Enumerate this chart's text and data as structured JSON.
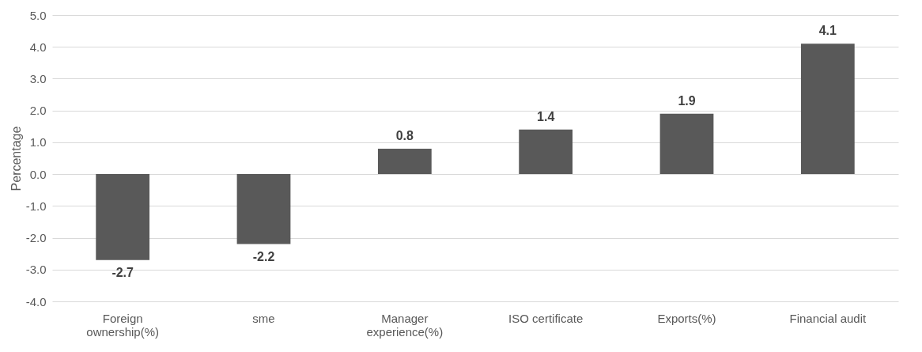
{
  "chart_data": {
    "type": "bar",
    "ylabel": "Percentage",
    "categories": [
      "Foreign ownership(%)",
      "sme",
      "Manager experience(%)",
      "ISO certificate",
      "Exports(%)",
      "Financial audit"
    ],
    "values": [
      -2.7,
      -2.2,
      0.8,
      1.4,
      1.9,
      4.1
    ],
    "color": "#595959",
    "ylim": [
      -4,
      5
    ],
    "yticks": [
      {
        "value": -4,
        "label": "-4.0"
      },
      {
        "value": -3,
        "label": "-3.0"
      },
      {
        "value": -2,
        "label": "-2.0"
      },
      {
        "value": -1,
        "label": "-1.0"
      },
      {
        "value": 0,
        "label": "0.0"
      },
      {
        "value": 1,
        "label": "1.0"
      },
      {
        "value": 2,
        "label": "2.0"
      },
      {
        "value": 3,
        "label": "3.0"
      },
      {
        "value": 4,
        "label": "4.0"
      },
      {
        "value": 5,
        "label": "5.0"
      }
    ],
    "grid": "y",
    "data_labels": true
  }
}
